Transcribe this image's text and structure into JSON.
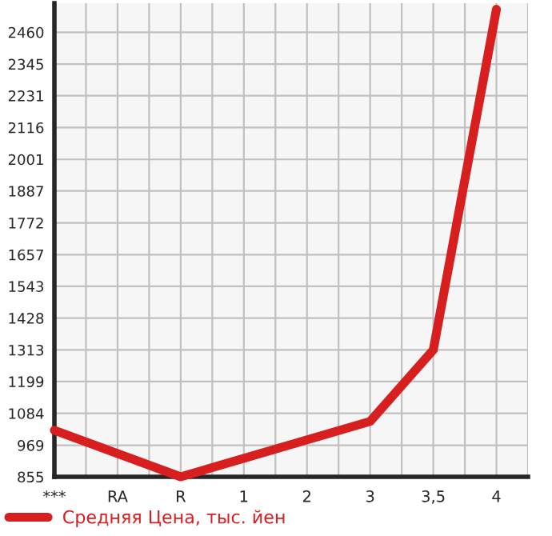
{
  "chart_data": {
    "type": "line",
    "categories": [
      "***",
      "RA",
      "R",
      "1",
      "2",
      "3",
      "3,5",
      "4"
    ],
    "series": [
      {
        "name": "Средняя Цена, тыс. йен",
        "color": "#d71f1f",
        "values": [
          1023,
          null,
          855,
          null,
          null,
          1055,
          1313,
          2543
        ]
      }
    ],
    "ylim": [
      855,
      2565
    ],
    "yticks": [
      855,
      969,
      1084,
      1199,
      1313,
      1428,
      1543,
      1657,
      1772,
      1887,
      2001,
      2116,
      2231,
      2345,
      2460
    ],
    "grid": true,
    "legend": "bottom left",
    "marker": "none",
    "line_style": "solid"
  }
}
